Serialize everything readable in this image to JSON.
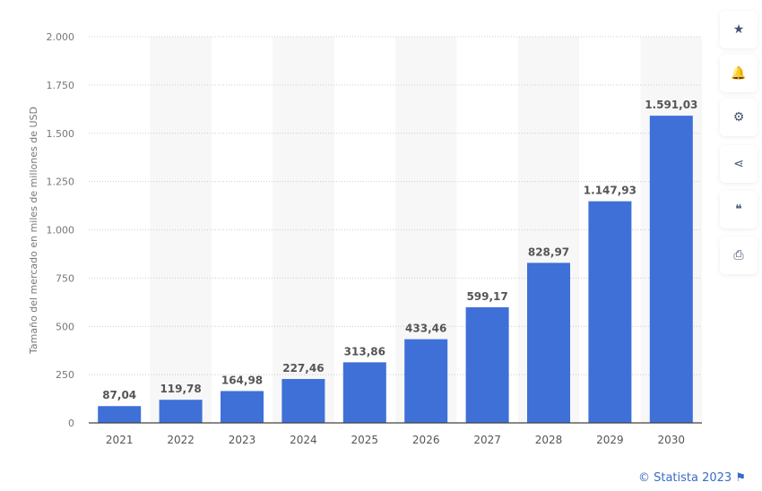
{
  "chart_data": {
    "type": "bar",
    "categories": [
      "2021",
      "2022",
      "2023",
      "2024",
      "2025",
      "2026",
      "2027",
      "2028",
      "2029",
      "2030"
    ],
    "values": [
      87.04,
      119.78,
      164.98,
      227.46,
      313.86,
      433.46,
      599.17,
      828.97,
      1147.93,
      1591.03
    ],
    "data_labels": [
      "87,04",
      "119,78",
      "164,98",
      "227,46",
      "313,86",
      "433,46",
      "599,17",
      "828,97",
      "1.147,93",
      "1.591,03"
    ],
    "ylabel": "Tamaño del mercado en miles de millones de USD",
    "xlabel": "",
    "ylim": [
      0,
      2000
    ],
    "yticks": [
      0,
      250,
      500,
      750,
      1000,
      1250,
      1500,
      1750,
      2000
    ],
    "ytick_labels": [
      "0",
      "250",
      "500",
      "750",
      "1.000",
      "1.250",
      "1.500",
      "1.750",
      "2.000"
    ],
    "grid": true,
    "bar_color": "#3f70d8"
  },
  "sidebar": {
    "icons": [
      "star-icon",
      "bell-icon",
      "gear-icon",
      "share-icon",
      "quote-icon",
      "print-icon"
    ],
    "glyphs": [
      "★",
      "🔔",
      "⚙",
      "<",
      "❝",
      "⎙"
    ]
  },
  "footer": {
    "credit": "© Statista 2023",
    "flag_icon": "flag-icon"
  }
}
